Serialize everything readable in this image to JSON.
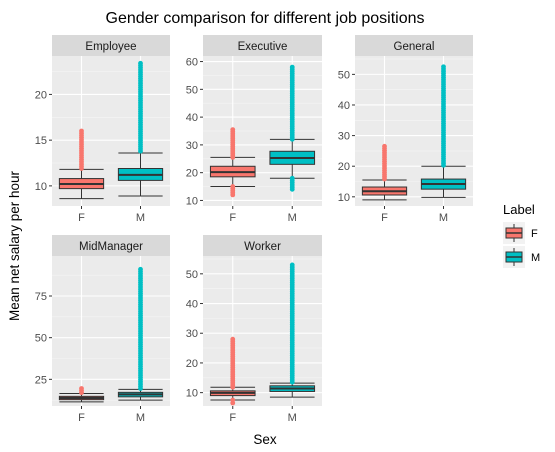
{
  "chart_data": {
    "type": "boxplot",
    "title": "Gender comparison for different job positions",
    "xlabel": "Sex",
    "ylabel": "Mean net salary per hour",
    "categories": [
      "F",
      "M"
    ],
    "legend": {
      "title": "Label",
      "position": "right",
      "entries": [
        {
          "label": "F",
          "color": "#F8766D"
        },
        {
          "label": "M",
          "color": "#00BFC4"
        }
      ]
    },
    "grid": true,
    "panels": [
      {
        "name": "Employee",
        "ylim": [
          7.8,
          24.2
        ],
        "yticks": [
          10,
          15,
          20
        ],
        "boxes": [
          {
            "category": "F",
            "whisker_low": 8.6,
            "q1": 9.7,
            "median": 10.2,
            "q3": 10.8,
            "whisker_high": 11.8,
            "outlier_min": 11.9,
            "outlier_max": 16.0
          },
          {
            "category": "M",
            "whisker_low": 8.9,
            "q1": 10.6,
            "median": 11.2,
            "q3": 11.9,
            "whisker_high": 13.6,
            "outlier_min": 13.8,
            "outlier_max": 23.4
          }
        ]
      },
      {
        "name": "Executive",
        "ylim": [
          8,
          62
        ],
        "yticks": [
          10,
          20,
          30,
          40,
          50,
          60
        ],
        "boxes": [
          {
            "category": "F",
            "whisker_low": 15,
            "q1": 18.5,
            "median": 20.2,
            "q3": 22.3,
            "whisker_high": 25.5,
            "outlier_min": 12,
            "outlier_max": 35.5
          },
          {
            "category": "M",
            "whisker_low": 18,
            "q1": 23,
            "median": 25.3,
            "q3": 27.7,
            "whisker_high": 32,
            "outlier_min": 14,
            "outlier_max": 58
          }
        ]
      },
      {
        "name": "General",
        "ylim": [
          7,
          56
        ],
        "yticks": [
          10,
          20,
          30,
          40,
          50
        ],
        "boxes": [
          {
            "category": "F",
            "whisker_low": 9,
            "q1": 10.6,
            "median": 11.8,
            "q3": 13.2,
            "whisker_high": 15.5,
            "outlier_min": 15.8,
            "outlier_max": 26.5
          },
          {
            "category": "M",
            "whisker_low": 9.8,
            "q1": 12.5,
            "median": 14.2,
            "q3": 15.8,
            "whisker_high": 20,
            "outlier_min": 20.3,
            "outlier_max": 52.5
          }
        ]
      },
      {
        "name": "MidManager",
        "ylim": [
          9,
          99
        ],
        "yticks": [
          25,
          50,
          75
        ],
        "boxes": [
          {
            "category": "F",
            "whisker_low": 11.5,
            "q1": 12.8,
            "median": 13.8,
            "q3": 14.8,
            "whisker_high": 16.5,
            "outlier_min": 17,
            "outlier_max": 19.5
          },
          {
            "category": "M",
            "whisker_low": 12.5,
            "q1": 14.5,
            "median": 16,
            "q3": 17.2,
            "whisker_high": 19,
            "outlier_min": 19.5,
            "outlier_max": 91
          }
        ]
      },
      {
        "name": "Worker",
        "ylim": [
          5.5,
          56
        ],
        "yticks": [
          10,
          20,
          30,
          40,
          50
        ],
        "boxes": [
          {
            "category": "F",
            "whisker_low": 7.5,
            "q1": 9,
            "median": 9.9,
            "q3": 10.6,
            "whisker_high": 11.8,
            "outlier_min": 6.5,
            "outlier_max": 28
          },
          {
            "category": "M",
            "whisker_low": 8.5,
            "q1": 10.4,
            "median": 11.4,
            "q3": 12.3,
            "whisker_high": 13.2,
            "outlier_min": 13.5,
            "outlier_max": 53
          }
        ]
      }
    ]
  }
}
